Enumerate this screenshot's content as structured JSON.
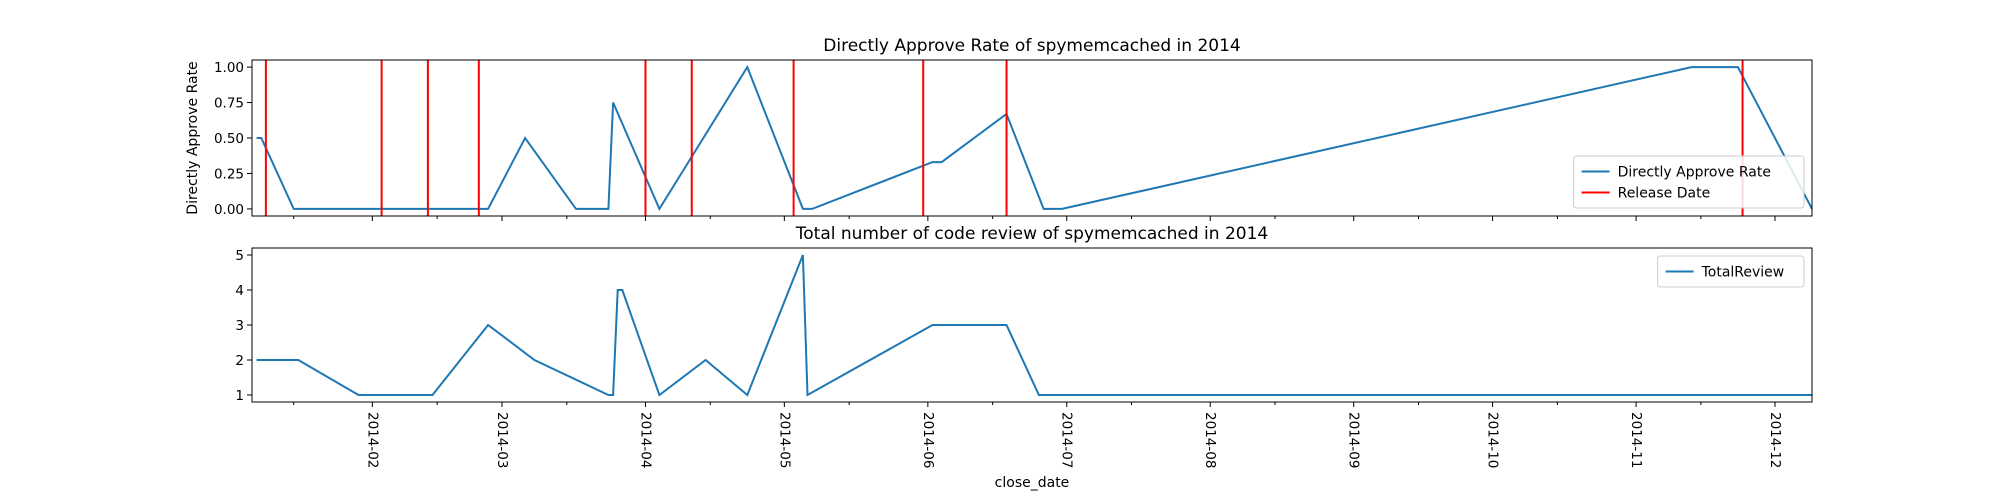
{
  "chart_data": [
    {
      "type": "line",
      "title": "Directly Approve Rate of spymemcached in 2014",
      "xlabel": "",
      "ylabel": "Directly Approve Rate",
      "ylim": [
        -0.05,
        1.05
      ],
      "yticks": [
        "0.00",
        "0.25",
        "0.50",
        "0.75",
        "1.00"
      ],
      "grid": false,
      "legend_position": "lower-right",
      "series": [
        {
          "name": "Directly Approve Rate",
          "color": "#1f77b4",
          "x": [
            "2014-01-07",
            "2014-01-08",
            "2014-01-15",
            "2014-02-26",
            "2014-03-06",
            "2014-03-17",
            "2014-03-24",
            "2014-03-25",
            "2014-04-04",
            "2014-04-23",
            "2014-05-05",
            "2014-05-07",
            "2014-06-02",
            "2014-06-04",
            "2014-06-18",
            "2014-06-26",
            "2014-06-30",
            "2014-11-13",
            "2014-11-23",
            "2014-12-09"
          ],
          "y": [
            0.5,
            0.5,
            0.0,
            0.0,
            0.5,
            0.0,
            0.0,
            0.75,
            0.0,
            1.0,
            0.0,
            0.0,
            0.33,
            0.33,
            0.67,
            0.0,
            0.0,
            1.0,
            1.0,
            0.0
          ]
        },
        {
          "name": "Release Date",
          "color": "#ff0000",
          "kind": "vertical-lines",
          "x": [
            "2014-01-09",
            "2014-02-03",
            "2014-02-13",
            "2014-02-24",
            "2014-04-01",
            "2014-04-11",
            "2014-05-03",
            "2014-05-31",
            "2014-06-18",
            "2014-11-24"
          ]
        }
      ]
    },
    {
      "type": "line",
      "title": "Total number of code review of spymemcached in 2014",
      "xlabel": "close_date",
      "ylabel": "",
      "ylim": [
        0.8,
        5.2
      ],
      "yticks": [
        "1",
        "2",
        "3",
        "4",
        "5"
      ],
      "xticks": [
        "2014-02",
        "2014-03",
        "2014-04",
        "2014-05",
        "2014-06",
        "2014-07",
        "2014-08",
        "2014-09",
        "2014-10",
        "2014-11",
        "2014-12"
      ],
      "grid": false,
      "legend_position": "upper-right",
      "series": [
        {
          "name": "TotalReview",
          "color": "#1f77b4",
          "x": [
            "2014-01-07",
            "2014-01-16",
            "2014-01-29",
            "2014-02-14",
            "2014-02-26",
            "2014-03-08",
            "2014-03-24",
            "2014-03-25",
            "2014-03-26",
            "2014-03-27",
            "2014-04-04",
            "2014-04-14",
            "2014-04-23",
            "2014-05-05",
            "2014-05-06",
            "2014-06-02",
            "2014-06-18",
            "2014-06-25",
            "2014-12-09"
          ],
          "y": [
            2,
            2,
            1,
            1,
            3,
            2,
            1,
            1,
            4,
            4,
            1,
            2,
            1,
            5,
            1,
            3,
            3,
            1,
            1
          ]
        }
      ]
    }
  ]
}
